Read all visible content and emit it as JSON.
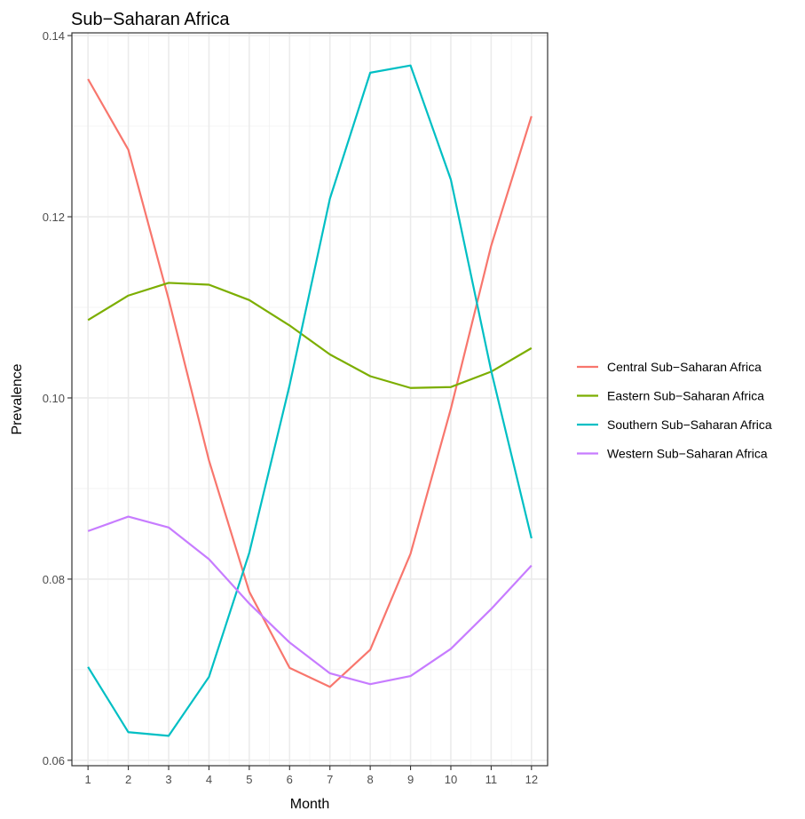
{
  "chart_data": {
    "type": "line",
    "title": "Sub−Saharan Africa",
    "xlabel": "Month",
    "ylabel": "Prevalence",
    "x": [
      1,
      2,
      3,
      4,
      5,
      6,
      7,
      8,
      9,
      10,
      11,
      12
    ],
    "xlim": [
      0.6,
      12.4
    ],
    "ylim": [
      0.0594,
      0.1403
    ],
    "xticks": [
      1,
      2,
      3,
      4,
      5,
      6,
      7,
      8,
      9,
      10,
      11,
      12
    ],
    "yticks": [
      0.06,
      0.08,
      0.1,
      0.12,
      0.14
    ],
    "ytick_labels": [
      "0.06",
      "0.08",
      "0.10",
      "0.12",
      "0.14"
    ],
    "grid": true,
    "legend_position": "right",
    "series": [
      {
        "name": "Central Sub−Saharan Africa",
        "color": "#F8766D",
        "values": [
          0.1352,
          0.1274,
          0.1109,
          0.0931,
          0.0786,
          0.0702,
          0.0681,
          0.0722,
          0.0828,
          0.0988,
          0.1168,
          0.1311
        ]
      },
      {
        "name": "Eastern Sub−Saharan Africa",
        "color": "#7CAE00",
        "values": [
          0.1086,
          0.1113,
          0.1127,
          0.1125,
          0.1108,
          0.108,
          0.1048,
          0.1024,
          0.1011,
          0.1012,
          0.1029,
          0.1055
        ]
      },
      {
        "name": "Southern Sub−Saharan Africa",
        "color": "#00BFC4",
        "values": [
          0.0703,
          0.0631,
          0.0627,
          0.0692,
          0.0829,
          0.1014,
          0.122,
          0.1359,
          0.1367,
          0.1241,
          0.103,
          0.0845
        ]
      },
      {
        "name": "Western Sub−Saharan Africa",
        "color": "#C77CFF",
        "values": [
          0.0853,
          0.0869,
          0.0857,
          0.0822,
          0.0773,
          0.073,
          0.0696,
          0.0684,
          0.0693,
          0.0723,
          0.0767,
          0.0815
        ]
      }
    ]
  }
}
